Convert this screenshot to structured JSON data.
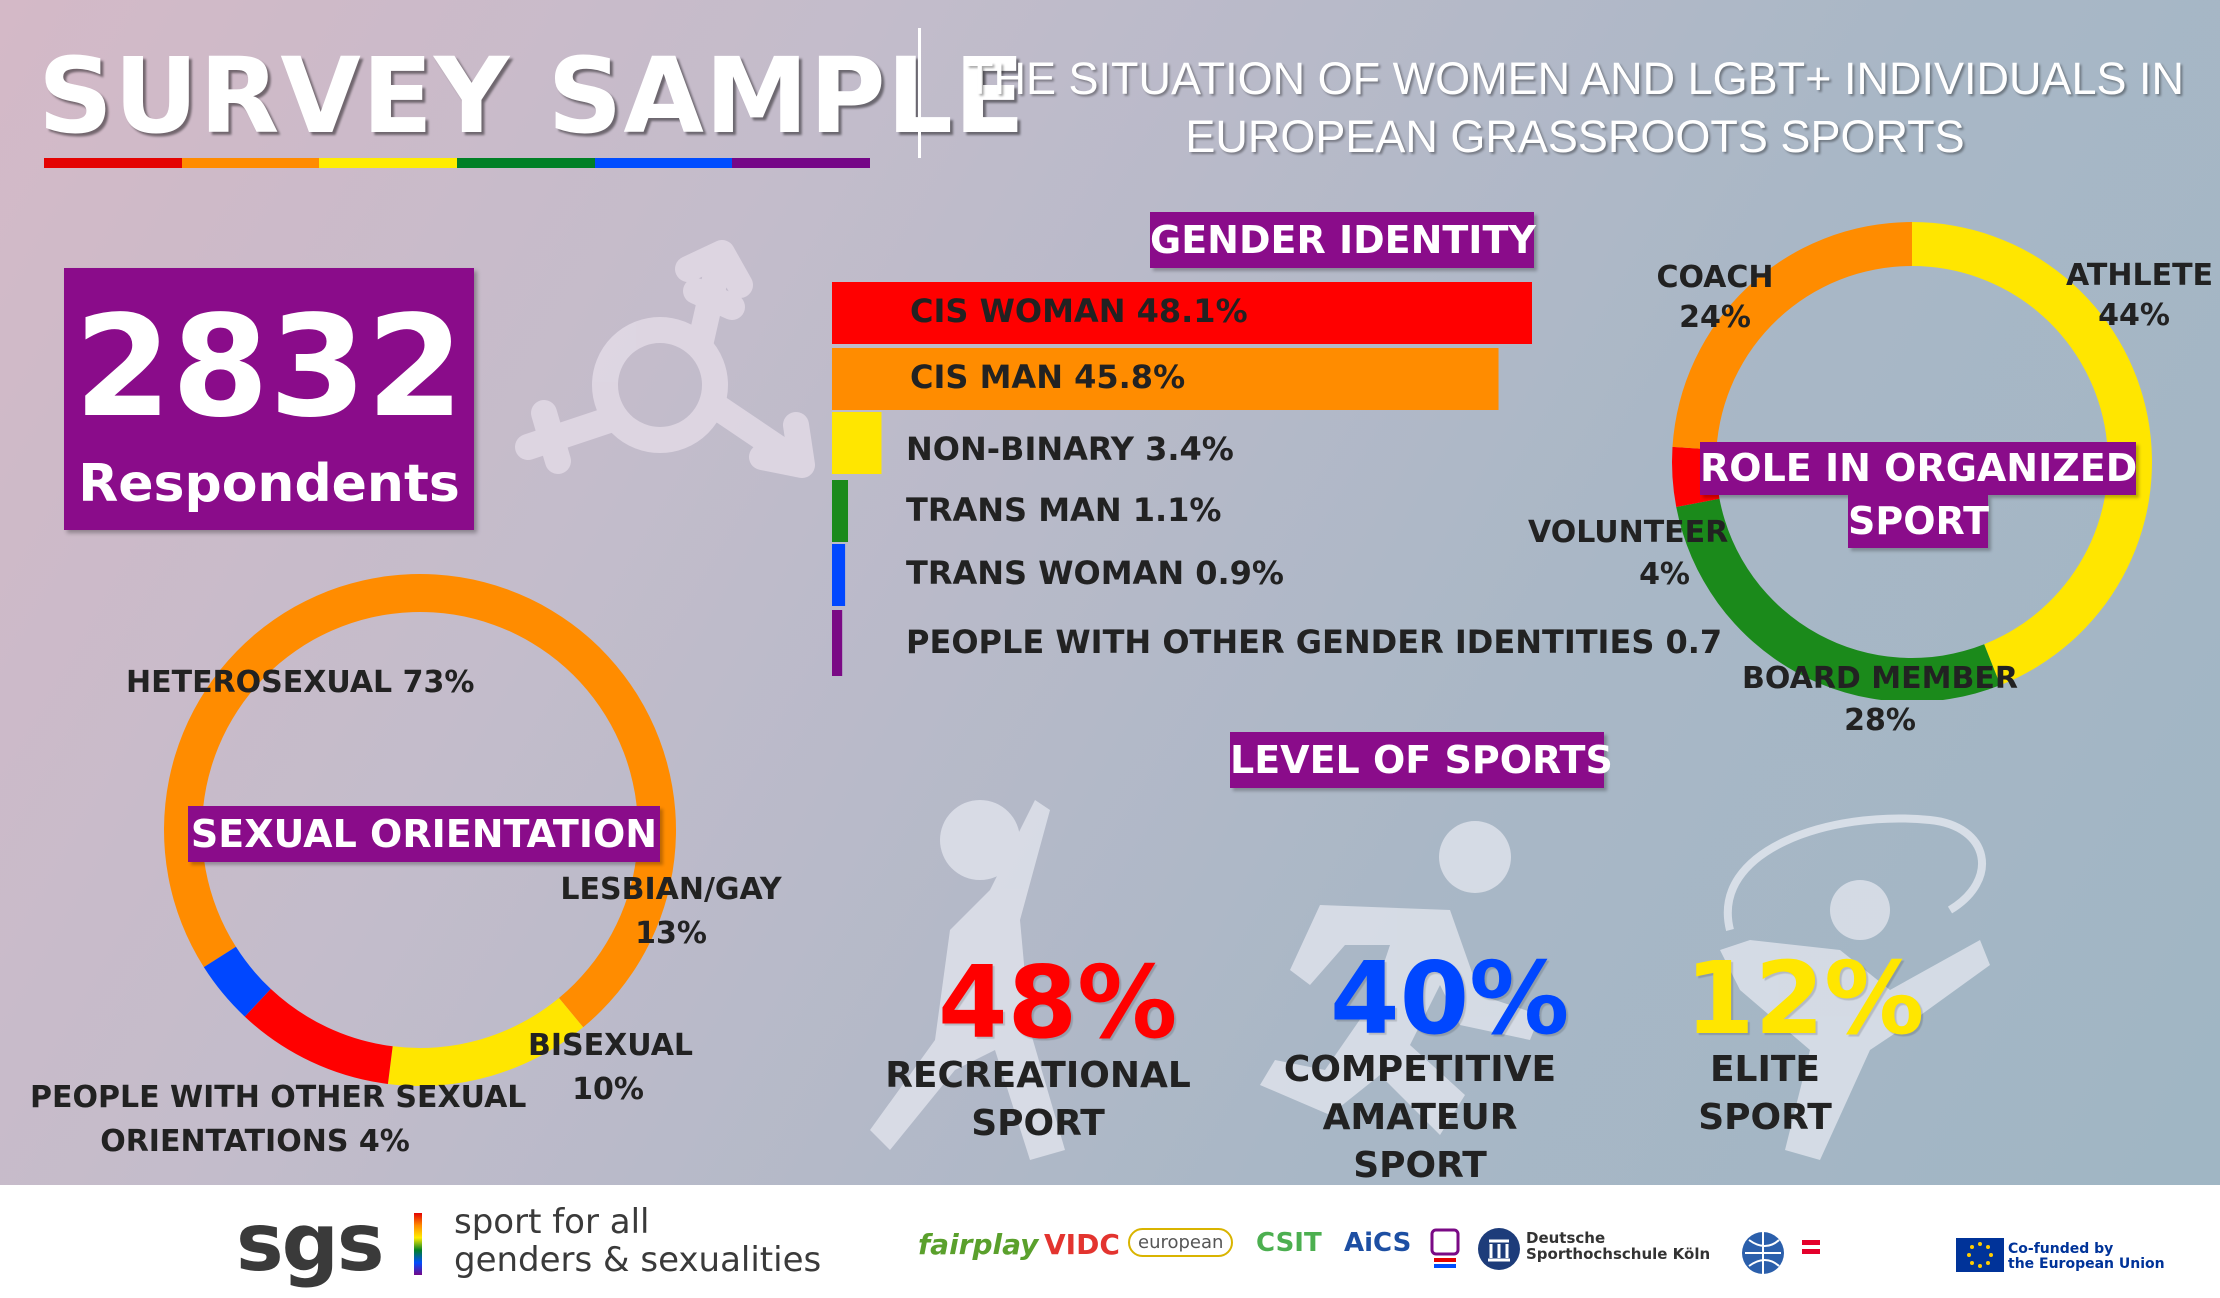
{
  "header": {
    "title": "SURVEY SAMPLE",
    "subtitle_line1": "THE SITUATION OF WOMEN AND LGBT+ INDIVIDUALS IN",
    "subtitle_line2": "EUROPEAN GRASSROOTS SPORTS"
  },
  "respondents": {
    "count": "2832",
    "label": "Respondents"
  },
  "colors": {
    "red": "#ff0000",
    "orange": "#ff8c00",
    "yellow": "#ffe600",
    "green": "#1b8a1b",
    "blue": "#0047ff",
    "purple": "#7a0a85",
    "box": "#8a0c8a"
  },
  "chart_data": [
    {
      "type": "bar",
      "title": "GENDER IDENTITY",
      "categories": [
        "CIS WOMAN",
        "CIS MAN",
        "NON-BINARY",
        "TRANS MAN",
        "TRANS WOMAN",
        "PEOPLE WITH OTHER GENDER IDENTITIES"
      ],
      "values": [
        48.1,
        45.8,
        3.4,
        1.1,
        0.9,
        0.7
      ],
      "labels": [
        "CIS WOMAN 48.1%",
        "CIS MAN 45.8%",
        "NON-BINARY 3.4%",
        "TRANS MAN 1.1%",
        "TRANS WOMAN 0.9%",
        "PEOPLE WITH OTHER GENDER IDENTITIES 0.7%"
      ],
      "colors": [
        "#ff0000",
        "#ff8c00",
        "#ffe600",
        "#1b8a1b",
        "#0047ff",
        "#7a0a85"
      ]
    },
    {
      "type": "pie",
      "title": "SEXUAL ORIENTATION",
      "categories": [
        "HETEROSEXUAL",
        "LESBIAN/GAY",
        "BISEXUAL",
        "PEOPLE WITH OTHER SEXUAL ORIENTATIONS"
      ],
      "values": [
        73,
        13,
        10,
        4
      ],
      "colors": [
        "#ff8c00",
        "#ffe600",
        "#ff0000",
        "#0047ff"
      ],
      "labels": [
        "HETEROSEXUAL 73%",
        "LESBIAN/GAY",
        "13%",
        "BISEXUAL",
        "10%",
        "PEOPLE WITH OTHER SEXUAL",
        "ORIENTATIONS 4%"
      ]
    },
    {
      "type": "pie",
      "title_line1": "ROLE IN ORGANIZED",
      "title_line2": "SPORT",
      "categories": [
        "ATHLETE",
        "BOARD MEMBER",
        "VOLUNTEER",
        "COACH"
      ],
      "values": [
        44,
        28,
        4,
        24
      ],
      "colors": [
        "#ffe600",
        "#1b8a1b",
        "#ff0000",
        "#ff8c00"
      ],
      "labels": {
        "coach": "COACH",
        "coach_pct": "24%",
        "athlete": "ATHLETE",
        "athlete_pct": "44%",
        "volunteer": "VOLUNTEER",
        "volunteer_pct": "4%",
        "board": "BOARD MEMBER",
        "board_pct": "28%"
      }
    },
    {
      "type": "bar",
      "title": "LEVEL OF SPORTS",
      "categories": [
        "RECREATIONAL SPORT",
        "COMPETITIVE AMATEUR SPORT",
        "ELITE SPORT"
      ],
      "values": [
        48,
        40,
        12
      ],
      "pct_labels": [
        "48%",
        "40%",
        "12%"
      ],
      "label_lines": [
        [
          "RECREATIONAL",
          "SPORT"
        ],
        [
          "COMPETITIVE",
          "AMATEUR SPORT"
        ],
        [
          "ELITE SPORT"
        ]
      ],
      "colors": [
        "#ff0000",
        "#0047ff",
        "#ffe600"
      ]
    }
  ],
  "footer": {
    "brand": "sgs",
    "tagline_line1": "sport for all",
    "tagline_line2": "genders & sexualities",
    "partners": [
      "fairplay",
      "VIDC",
      "european",
      "CSIT",
      "AiCS",
      "Deutsche",
      "Sporthochschule Köln",
      "Co-funded by",
      "the European Union"
    ]
  }
}
